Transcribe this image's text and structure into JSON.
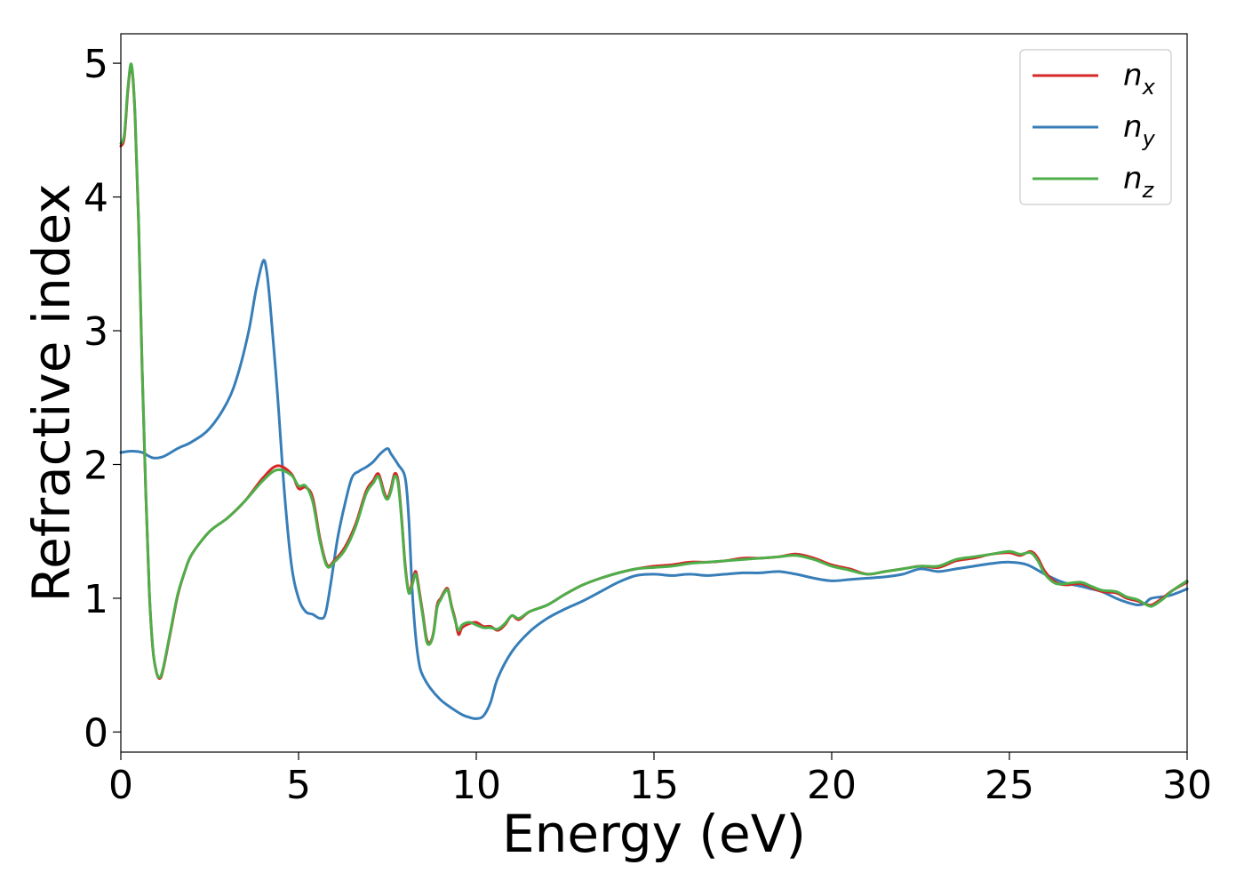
{
  "chart_data": {
    "type": "line",
    "title": "",
    "xlabel": "Energy (eV)",
    "ylabel": "Refractive index",
    "xlim": [
      0,
      30
    ],
    "ylim": [
      -0.15,
      5.22
    ],
    "xticks": [
      0,
      5,
      10,
      15,
      20,
      25,
      30
    ],
    "yticks": [
      0,
      1,
      2,
      3,
      4,
      5
    ],
    "grid": false,
    "legend": {
      "placement": "top-right"
    },
    "series": [
      {
        "name": "n",
        "subscript": "x",
        "color": "#d62728",
        "x": [
          0,
          0.1,
          0.2,
          0.3,
          0.4,
          0.5,
          0.6,
          0.7,
          0.8,
          0.9,
          1.0,
          1.1,
          1.2,
          1.4,
          1.6,
          1.8,
          2.0,
          2.5,
          3.0,
          3.5,
          4.0,
          4.4,
          4.8,
          5.0,
          5.2,
          5.4,
          5.6,
          5.8,
          6.0,
          6.3,
          6.6,
          6.9,
          7.1,
          7.25,
          7.4,
          7.5,
          7.6,
          7.7,
          7.8,
          7.9,
          8.0,
          8.1,
          8.2,
          8.3,
          8.4,
          8.5,
          8.6,
          8.7,
          8.8,
          8.9,
          9.0,
          9.1,
          9.2,
          9.3,
          9.4,
          9.5,
          9.6,
          9.8,
          10.0,
          10.2,
          10.4,
          10.6,
          10.8,
          11.0,
          11.2,
          11.5,
          12.0,
          12.5,
          13.0,
          13.5,
          14.0,
          14.5,
          15.0,
          15.5,
          16.0,
          16.5,
          17.0,
          17.5,
          18.0,
          18.5,
          19.0,
          19.5,
          20.0,
          20.5,
          21.0,
          21.5,
          22.0,
          22.5,
          23.0,
          23.5,
          24.0,
          24.5,
          25.0,
          25.3,
          25.6,
          25.8,
          26.0,
          26.3,
          26.6,
          27.0,
          27.3,
          27.6,
          28.0,
          28.3,
          28.6,
          28.8,
          29.0,
          29.3,
          29.6,
          30.0
        ],
        "y": [
          4.38,
          4.45,
          4.8,
          4.98,
          4.6,
          3.8,
          2.7,
          1.8,
          1.05,
          0.62,
          0.45,
          0.4,
          0.48,
          0.75,
          1.02,
          1.2,
          1.33,
          1.5,
          1.6,
          1.73,
          1.9,
          1.99,
          1.93,
          1.82,
          1.83,
          1.75,
          1.45,
          1.25,
          1.28,
          1.38,
          1.55,
          1.8,
          1.88,
          1.93,
          1.8,
          1.75,
          1.82,
          1.93,
          1.88,
          1.6,
          1.25,
          1.05,
          1.12,
          1.2,
          1.05,
          0.88,
          0.7,
          0.67,
          0.75,
          0.95,
          1.0,
          1.05,
          1.07,
          0.95,
          0.85,
          0.73,
          0.78,
          0.81,
          0.82,
          0.79,
          0.79,
          0.76,
          0.8,
          0.87,
          0.84,
          0.9,
          0.95,
          1.03,
          1.1,
          1.15,
          1.19,
          1.22,
          1.24,
          1.25,
          1.27,
          1.27,
          1.28,
          1.3,
          1.3,
          1.31,
          1.33,
          1.3,
          1.25,
          1.22,
          1.18,
          1.2,
          1.22,
          1.24,
          1.23,
          1.28,
          1.3,
          1.33,
          1.34,
          1.32,
          1.35,
          1.3,
          1.2,
          1.12,
          1.1,
          1.11,
          1.08,
          1.05,
          1.04,
          1.0,
          0.98,
          0.96,
          0.95,
          1.0,
          1.06,
          1.12
        ]
      },
      {
        "name": "n",
        "subscript": "y",
        "color": "#377eb8",
        "x": [
          0,
          0.3,
          0.6,
          0.9,
          1.2,
          1.6,
          2.0,
          2.5,
          3.0,
          3.3,
          3.6,
          3.8,
          4.0,
          4.1,
          4.2,
          4.4,
          4.6,
          4.8,
          5.0,
          5.2,
          5.4,
          5.6,
          5.75,
          5.9,
          6.1,
          6.3,
          6.5,
          6.7,
          6.9,
          7.1,
          7.3,
          7.5,
          7.6,
          7.8,
          8.0,
          8.1,
          8.2,
          8.3,
          8.4,
          8.5,
          8.7,
          9.0,
          9.3,
          9.6,
          9.8,
          10.0,
          10.2,
          10.4,
          10.6,
          11.0,
          11.5,
          12.0,
          12.5,
          13.0,
          13.5,
          14.0,
          14.5,
          15.0,
          15.5,
          16.0,
          16.5,
          17.0,
          17.5,
          18.0,
          18.5,
          19.0,
          19.5,
          20.0,
          20.5,
          21.0,
          21.5,
          22.0,
          22.5,
          23.0,
          23.5,
          24.0,
          24.5,
          25.0,
          25.5,
          26.0,
          26.5,
          27.0,
          27.3,
          27.6,
          28.0,
          28.3,
          28.6,
          28.8,
          29.0,
          29.5,
          30.0
        ],
        "y": [
          2.09,
          2.1,
          2.09,
          2.05,
          2.06,
          2.12,
          2.17,
          2.27,
          2.47,
          2.68,
          3.0,
          3.3,
          3.52,
          3.45,
          3.2,
          2.55,
          1.8,
          1.25,
          1.0,
          0.9,
          0.88,
          0.85,
          0.88,
          1.1,
          1.45,
          1.7,
          1.9,
          1.95,
          1.98,
          2.02,
          2.08,
          2.12,
          2.08,
          2.0,
          1.9,
          1.6,
          1.05,
          0.7,
          0.5,
          0.42,
          0.33,
          0.24,
          0.18,
          0.13,
          0.11,
          0.1,
          0.12,
          0.22,
          0.4,
          0.6,
          0.75,
          0.85,
          0.92,
          0.98,
          1.05,
          1.12,
          1.17,
          1.18,
          1.17,
          1.18,
          1.17,
          1.18,
          1.19,
          1.19,
          1.2,
          1.18,
          1.15,
          1.13,
          1.14,
          1.15,
          1.16,
          1.18,
          1.22,
          1.2,
          1.22,
          1.24,
          1.26,
          1.27,
          1.25,
          1.18,
          1.12,
          1.09,
          1.07,
          1.05,
          1.0,
          0.97,
          0.95,
          0.96,
          1.0,
          1.02,
          1.07
        ]
      },
      {
        "name": "n",
        "subscript": "z",
        "color": "#4daf4a",
        "x": [
          0,
          0.1,
          0.2,
          0.3,
          0.4,
          0.5,
          0.6,
          0.7,
          0.8,
          0.9,
          1.0,
          1.1,
          1.2,
          1.4,
          1.6,
          1.8,
          2.0,
          2.5,
          3.0,
          3.5,
          4.0,
          4.4,
          4.8,
          5.0,
          5.2,
          5.4,
          5.6,
          5.8,
          6.0,
          6.3,
          6.6,
          6.9,
          7.1,
          7.25,
          7.4,
          7.5,
          7.6,
          7.7,
          7.8,
          7.9,
          8.0,
          8.1,
          8.2,
          8.3,
          8.4,
          8.5,
          8.6,
          8.7,
          8.8,
          8.9,
          9.0,
          9.1,
          9.2,
          9.3,
          9.4,
          9.5,
          9.6,
          9.8,
          10.0,
          10.2,
          10.4,
          10.6,
          10.8,
          11.0,
          11.2,
          11.5,
          12.0,
          12.5,
          13.0,
          13.5,
          14.0,
          14.5,
          15.0,
          15.5,
          16.0,
          16.5,
          17.0,
          17.5,
          18.0,
          18.5,
          19.0,
          19.5,
          20.0,
          20.5,
          21.0,
          21.5,
          22.0,
          22.5,
          23.0,
          23.5,
          24.0,
          24.5,
          25.0,
          25.3,
          25.6,
          25.8,
          26.0,
          26.3,
          26.6,
          27.0,
          27.3,
          27.6,
          28.0,
          28.3,
          28.6,
          28.8,
          29.0,
          29.3,
          29.6,
          30.0
        ],
        "y": [
          4.4,
          4.47,
          4.82,
          4.99,
          4.62,
          3.82,
          2.72,
          1.82,
          1.06,
          0.63,
          0.45,
          0.41,
          0.49,
          0.76,
          1.03,
          1.2,
          1.33,
          1.5,
          1.6,
          1.73,
          1.88,
          1.96,
          1.92,
          1.84,
          1.84,
          1.72,
          1.43,
          1.24,
          1.27,
          1.36,
          1.53,
          1.78,
          1.86,
          1.91,
          1.78,
          1.74,
          1.8,
          1.91,
          1.86,
          1.58,
          1.23,
          1.04,
          1.1,
          1.18,
          1.03,
          0.86,
          0.68,
          0.66,
          0.74,
          0.93,
          0.99,
          1.04,
          1.06,
          0.94,
          0.84,
          0.76,
          0.8,
          0.82,
          0.8,
          0.78,
          0.78,
          0.77,
          0.81,
          0.87,
          0.85,
          0.9,
          0.95,
          1.03,
          1.1,
          1.15,
          1.19,
          1.22,
          1.23,
          1.24,
          1.26,
          1.27,
          1.28,
          1.29,
          1.3,
          1.31,
          1.32,
          1.29,
          1.24,
          1.21,
          1.18,
          1.2,
          1.22,
          1.24,
          1.24,
          1.29,
          1.31,
          1.33,
          1.35,
          1.33,
          1.34,
          1.28,
          1.18,
          1.11,
          1.11,
          1.12,
          1.09,
          1.06,
          1.05,
          1.01,
          0.99,
          0.96,
          0.94,
          0.99,
          1.06,
          1.13
        ]
      }
    ]
  }
}
